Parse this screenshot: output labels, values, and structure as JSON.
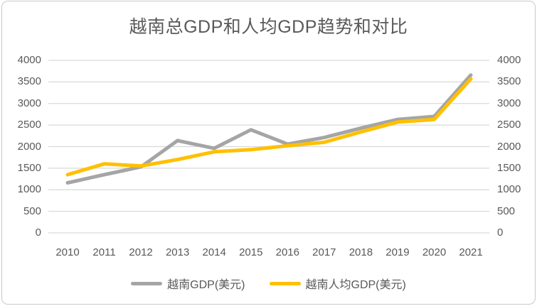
{
  "chart_data": {
    "type": "line",
    "title": "越南总GDP和人均GDP趋势和对比",
    "categories": [
      "2010",
      "2011",
      "2012",
      "2013",
      "2014",
      "2015",
      "2016",
      "2017",
      "2018",
      "2019",
      "2020",
      "2021"
    ],
    "series": [
      {
        "name": "越南GDP(美元)",
        "color": "#a5a5a5",
        "values": [
          1160,
          1350,
          1530,
          2140,
          1960,
          2390,
          2060,
          2210,
          2430,
          2630,
          2700,
          3660
        ]
      },
      {
        "name": "越南人均GDP(美元)",
        "color": "#ffc000",
        "values": [
          1350,
          1600,
          1550,
          1700,
          1880,
          1930,
          2020,
          2100,
          2340,
          2570,
          2630,
          3570
        ]
      }
    ],
    "y_axis": {
      "min": 0,
      "max": 4000,
      "step": 500,
      "ticks": [
        "0",
        "500",
        "1000",
        "1500",
        "2000",
        "2500",
        "3000",
        "3500",
        "4000"
      ],
      "dual_sided": true
    },
    "x_axis": {
      "label": ""
    },
    "grid": true,
    "legend_position": "bottom",
    "colors": {
      "gridline": "#d9d9d9",
      "text": "#595959",
      "frame_border": "#c9c9c9",
      "background": "#ffffff"
    }
  }
}
